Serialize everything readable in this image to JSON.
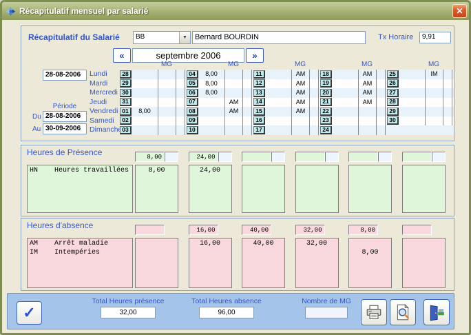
{
  "window": {
    "title": "Récapitulatif mensuel par salarié"
  },
  "icons": {
    "close": "✕",
    "prev": "«",
    "next": "»",
    "combo_arrow": "▼",
    "check": "✓"
  },
  "header": {
    "salarie_label": "Récapitulatif du Salarié",
    "employee_code": "BB",
    "employee_name": "Bernard BOURDIN",
    "tx_label": "Tx Horaire",
    "tx_value": "9,91",
    "month": "septembre 2006"
  },
  "period": {
    "week_start_date": "28-08-2006",
    "periode_label": "Période",
    "du_label": "Du",
    "du_value": "28-08-2006",
    "au_label": "Au",
    "au_value": "30-09-2006"
  },
  "calendar": {
    "mg_header": "MG",
    "day_names": [
      "Lundi",
      "Mardi",
      "Mercredi",
      "Jeudi",
      "Vendredi",
      "Samedi",
      "Dimanche"
    ],
    "weeks": [
      {
        "days": [
          {
            "date": "28",
            "hours": "",
            "abs": "",
            "mg": ""
          },
          {
            "date": "29",
            "hours": "",
            "abs": "",
            "mg": ""
          },
          {
            "date": "30",
            "hours": "",
            "abs": "",
            "mg": ""
          },
          {
            "date": "31",
            "hours": "",
            "abs": "",
            "mg": ""
          },
          {
            "date": "01",
            "hours": "8,00",
            "abs": "",
            "mg": ""
          },
          {
            "date": "02",
            "hours": "",
            "abs": "",
            "mg": ""
          },
          {
            "date": "03",
            "hours": "",
            "abs": "",
            "mg": ""
          }
        ]
      },
      {
        "days": [
          {
            "date": "04",
            "hours": "8,00",
            "abs": "",
            "mg": ""
          },
          {
            "date": "05",
            "hours": "8,00",
            "abs": "",
            "mg": ""
          },
          {
            "date": "06",
            "hours": "8,00",
            "abs": "",
            "mg": ""
          },
          {
            "date": "07",
            "hours": "",
            "abs": "AM",
            "mg": ""
          },
          {
            "date": "08",
            "hours": "",
            "abs": "AM",
            "mg": ""
          },
          {
            "date": "09",
            "hours": "",
            "abs": "",
            "mg": ""
          },
          {
            "date": "10",
            "hours": "",
            "abs": "",
            "mg": ""
          }
        ]
      },
      {
        "days": [
          {
            "date": "11",
            "hours": "",
            "abs": "AM",
            "mg": ""
          },
          {
            "date": "12",
            "hours": "",
            "abs": "AM",
            "mg": ""
          },
          {
            "date": "13",
            "hours": "",
            "abs": "AM",
            "mg": ""
          },
          {
            "date": "14",
            "hours": "",
            "abs": "AM",
            "mg": ""
          },
          {
            "date": "15",
            "hours": "",
            "abs": "AM",
            "mg": ""
          },
          {
            "date": "16",
            "hours": "",
            "abs": "",
            "mg": ""
          },
          {
            "date": "17",
            "hours": "",
            "abs": "",
            "mg": ""
          }
        ]
      },
      {
        "days": [
          {
            "date": "18",
            "hours": "",
            "abs": "AM",
            "mg": ""
          },
          {
            "date": "19",
            "hours": "",
            "abs": "AM",
            "mg": ""
          },
          {
            "date": "20",
            "hours": "",
            "abs": "AM",
            "mg": ""
          },
          {
            "date": "21",
            "hours": "",
            "abs": "AM",
            "mg": ""
          },
          {
            "date": "22",
            "hours": "",
            "abs": "",
            "mg": ""
          },
          {
            "date": "23",
            "hours": "",
            "abs": "",
            "mg": ""
          },
          {
            "date": "24",
            "hours": "",
            "abs": "",
            "mg": ""
          }
        ]
      },
      {
        "days": [
          {
            "date": "25",
            "hours": "",
            "abs": "IM",
            "mg": ""
          },
          {
            "date": "26",
            "hours": "",
            "abs": "",
            "mg": ""
          },
          {
            "date": "27",
            "hours": "",
            "abs": "",
            "mg": ""
          },
          {
            "date": "28",
            "hours": "",
            "abs": "",
            "mg": ""
          },
          {
            "date": "29",
            "hours": "",
            "abs": "",
            "mg": ""
          },
          {
            "date": "30",
            "hours": "",
            "abs": "",
            "mg": ""
          },
          null
        ]
      }
    ]
  },
  "presence": {
    "label": "Heures de Présence",
    "header_values": [
      "8,00",
      "24,00",
      "",
      "",
      "",
      ""
    ],
    "rows": [
      {
        "code": "HN",
        "label": "Heures travaillées r"
      }
    ],
    "columns": [
      [
        "8,00"
      ],
      [
        "24,00"
      ],
      [
        ""
      ],
      [
        ""
      ],
      [
        ""
      ],
      [
        ""
      ]
    ]
  },
  "absence": {
    "label": "Heures d'absence",
    "header_values": [
      "",
      "16,00",
      "40,00",
      "32,00",
      "8,00",
      ""
    ],
    "rows": [
      {
        "code": "AM",
        "label": "Arrêt maladie"
      },
      {
        "code": "IM",
        "label": "Intempéries"
      }
    ],
    "columns": [
      [
        "",
        ""
      ],
      [
        "16,00",
        ""
      ],
      [
        "40,00",
        ""
      ],
      [
        "32,00",
        ""
      ],
      [
        "",
        "8,00"
      ],
      [
        "",
        ""
      ]
    ]
  },
  "footer": {
    "total_presence_label": "Total Heures présence",
    "total_presence_value": "32,00",
    "total_absence_label": "Total Heures absence",
    "total_absence_value": "96,00",
    "nombre_mg_label": "Nombre de MG",
    "nombre_mg_value": ""
  },
  "colors": {
    "accent_blue": "#3355CC",
    "presence_cell": "#E0F6DA",
    "absence_cell": "#FAD9DE",
    "date_cell": "#C2EBEE",
    "footer_bg": "#A5C4E9",
    "titlebar_olive": "#99A663"
  }
}
